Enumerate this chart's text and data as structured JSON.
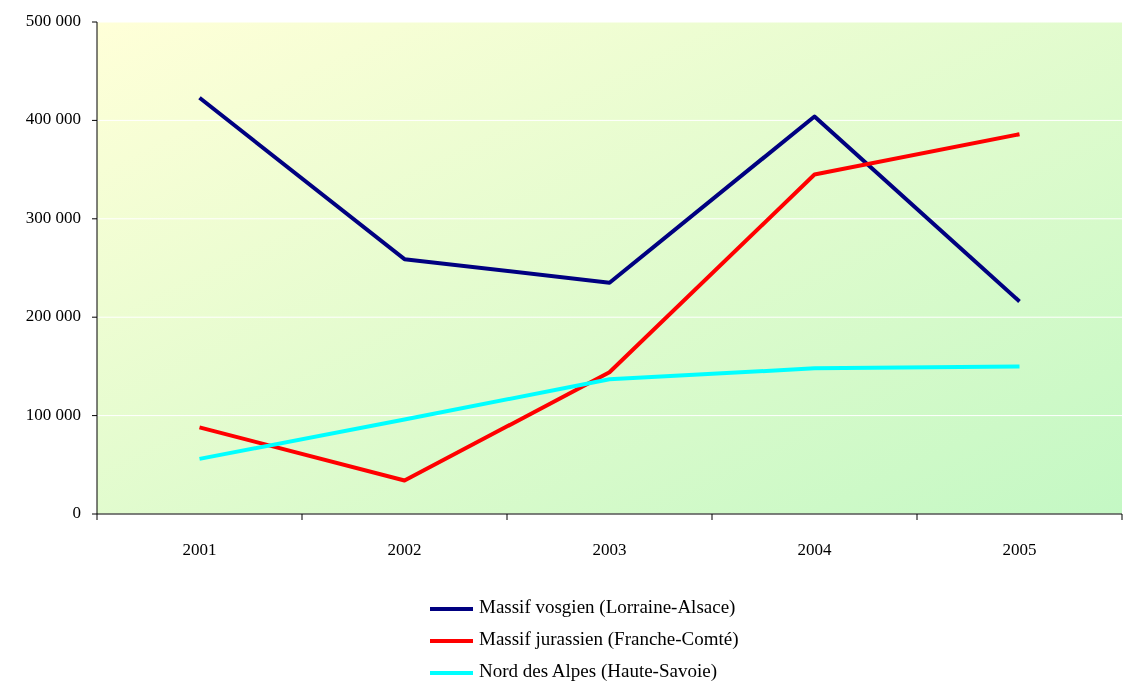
{
  "chart_data": {
    "type": "line",
    "categories": [
      "2001",
      "2002",
      "2003",
      "2004",
      "2005"
    ],
    "series": [
      {
        "name": "Massif vosgien (Lorraine-Alsace)",
        "color": "#000080",
        "values": [
          423000,
          259000,
          235000,
          404000,
          216000
        ]
      },
      {
        "name": "Massif jurassien (Franche-Comté)",
        "color": "#ff0000",
        "values": [
          88000,
          34000,
          144000,
          345000,
          386000
        ]
      },
      {
        "name": "Nord des Alpes (Haute-Savoie)",
        "color": "#00ffff",
        "values": [
          56000,
          96000,
          137000,
          148000,
          150000
        ]
      }
    ],
    "ylim": [
      0,
      500000
    ],
    "yticks": [
      {
        "value": 0,
        "label": "0"
      },
      {
        "value": 100000,
        "label": "100 000"
      },
      {
        "value": 200000,
        "label": "200 000"
      },
      {
        "value": 300000,
        "label": "300 000"
      },
      {
        "value": 400000,
        "label": "400 000"
      },
      {
        "value": 500000,
        "label": "500 000"
      }
    ],
    "grid": "y",
    "legend": "bottom",
    "marker": "none",
    "line_style": "solid"
  }
}
